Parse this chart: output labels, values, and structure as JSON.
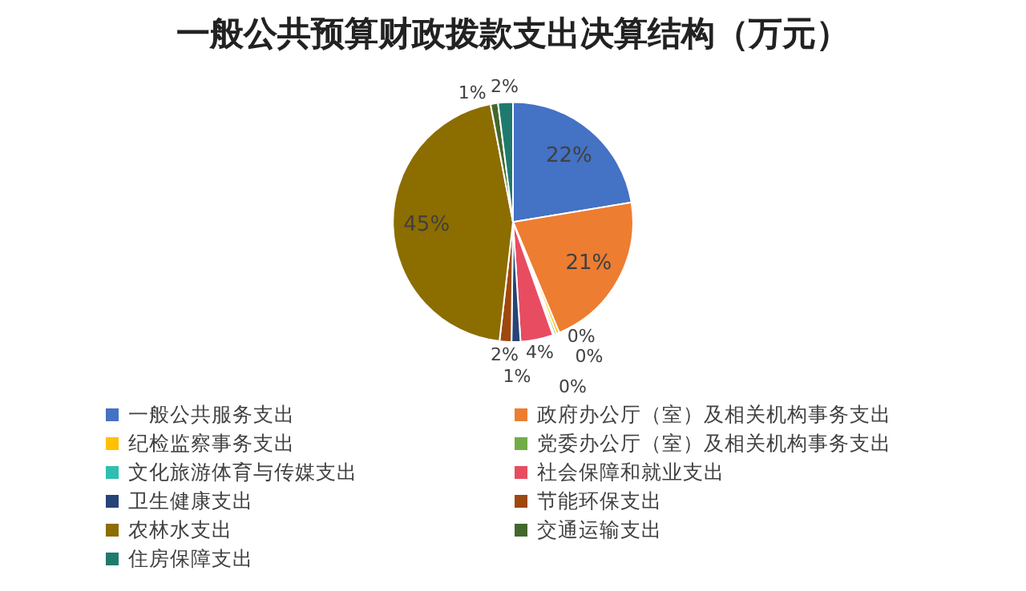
{
  "chart_data": {
    "type": "pie",
    "title": "一般公共预算财政拨款支出决算结构（万元）",
    "categories": [
      "一般公共服务支出",
      "政府办公厅（室）及相关机构事务支出",
      "纪检监察事务支出",
      "党委办公厅（室）及相关机构事务支出",
      "文化旅游体育与传媒支出",
      "社会保障和就业支出",
      "卫生健康支出",
      "节能环保支出",
      "农林水支出",
      "交通运输支出",
      "住房保障支出"
    ],
    "values": [
      22.4,
      21.3,
      0.4,
      0.3,
      0.2,
      4.4,
      1.2,
      1.6,
      45.2,
      1.0,
      2.0
    ],
    "value_labels": [
      "22%",
      "21%",
      "0%",
      "0%",
      "0%",
      "4%",
      "1%",
      "2%",
      "45%",
      "1%",
      "2%"
    ],
    "colors": [
      "#4472c4",
      "#ed7d31",
      "#ffc000",
      "#70ad47",
      "#2fbfb0",
      "#e84c61",
      "#264478",
      "#9e480e",
      "#8c6d00",
      "#43682b",
      "#1f7a6e"
    ],
    "legend": "bottom"
  }
}
